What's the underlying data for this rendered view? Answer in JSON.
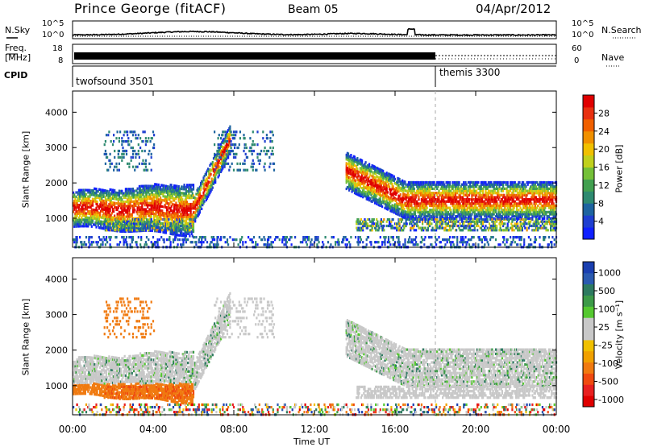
{
  "header": {
    "radar": "Prince George (fitACF)",
    "beam": "Beam 05",
    "date": "04/Apr/2012"
  },
  "top_panels": {
    "nsky_label": "N.Sky",
    "nsky_ticks": [
      "10^5",
      "10^0"
    ],
    "nsearch_label": "N.Search",
    "nsearch_ticks": [
      "10^5",
      "10^0"
    ],
    "freq_label_1": "Freq.",
    "freq_label_2": "[MHz]",
    "freq_ticks": [
      "18",
      "8"
    ],
    "nave_label": "Nave",
    "nave_ticks": [
      "60",
      "0"
    ],
    "cpid_label": "CPID",
    "cpid_segments": [
      {
        "name": "twofsound 3501",
        "start_hour": 0,
        "end_hour": 18
      },
      {
        "name": "themis 3300",
        "start_hour": 18,
        "end_hour": 24
      }
    ]
  },
  "chart_data": [
    {
      "type": "heatmap",
      "panel": "power",
      "ylabel": "Slant Range [km]",
      "xlabel": "",
      "ylim": [
        180,
        4600
      ],
      "yticks": [
        "1000",
        "2000",
        "3000",
        "4000"
      ],
      "xlim": [
        0,
        24
      ],
      "colorbar_label": "Power [dB]",
      "colorbar_ticks": [
        "4",
        "8",
        "12",
        "16",
        "20",
        "24",
        "28"
      ],
      "colorbar_colors": [
        "#1020ff",
        "#1f3fd0",
        "#1e64a0",
        "#2e8a70",
        "#42a050",
        "#74c038",
        "#c0d01c",
        "#f0c000",
        "#f09000",
        "#f06000",
        "#e83010",
        "#e00000"
      ]
    },
    {
      "type": "heatmap",
      "panel": "velocity",
      "ylabel": "Slant Range [km]",
      "xlabel": "Time UT",
      "ylim": [
        180,
        4600
      ],
      "yticks": [
        "1000",
        "2000",
        "3000",
        "4000"
      ],
      "xlim": [
        0,
        24
      ],
      "xticks": [
        "00:00",
        "04:00",
        "08:00",
        "12:00",
        "16:00",
        "20:00",
        "00:00"
      ],
      "colorbar_label": "Velocity [m s⁻¹]",
      "colorbar_ticks": [
        "1000",
        "500",
        "100",
        "25",
        "-25",
        "-100",
        "-500",
        "-1000"
      ],
      "colorbar_colors": [
        "#1a3fb0",
        "#2a5ab0",
        "#2d7a60",
        "#3c9a48",
        "#55c830",
        "#c8c8c8",
        "#c8c8c8",
        "#f0c000",
        "#f0a000",
        "#f07a10",
        "#f04a10",
        "#e82020",
        "#e00000"
      ]
    }
  ]
}
